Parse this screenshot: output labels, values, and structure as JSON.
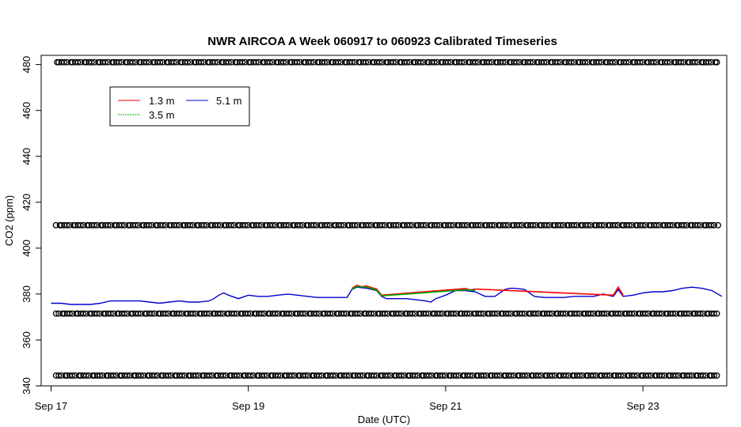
{
  "chart_data": {
    "type": "line",
    "title": "NWR AIRCOA A  Week 060917 to 060923  Calibrated Timeseries",
    "xlabel": "Date (UTC)",
    "ylabel": "CO2 (ppm)",
    "x_domain_days": [
      -0.1,
      6.85
    ],
    "ylim": [
      340,
      484
    ],
    "x_ticks": [
      {
        "day": 0,
        "label": "Sep 17"
      },
      {
        "day": 2,
        "label": "Sep 19"
      },
      {
        "day": 4,
        "label": "Sep 21"
      },
      {
        "day": 6,
        "label": "Sep 23"
      }
    ],
    "y_ticks": [
      340,
      360,
      380,
      400,
      420,
      440,
      460,
      480
    ],
    "legend": {
      "placement": "top-left",
      "entries": [
        {
          "name": "1.3 m",
          "color": "#ff0000"
        },
        {
          "name": "3.5 m",
          "color": "#00aa00"
        },
        {
          "name": "5.1 m",
          "color": "#0000cc"
        }
      ]
    },
    "calibration_levels": [
      481,
      410,
      371.5,
      344.5
    ],
    "calibration_time_range_days": [
      0.05,
      6.75
    ],
    "series": [
      {
        "name": "5.1 m",
        "color": "#0000cc",
        "x": [
          0,
          0.1,
          0.2,
          0.3,
          0.4,
          0.5,
          0.6,
          0.7,
          0.8,
          0.9,
          1.0,
          1.1,
          1.2,
          1.3,
          1.4,
          1.5,
          1.6,
          1.65,
          1.7,
          1.75,
          1.8,
          1.9,
          2.0,
          2.1,
          2.2,
          2.3,
          2.4,
          2.5,
          2.6,
          2.7,
          2.8,
          2.9,
          3.0,
          3.05,
          3.1,
          3.2,
          3.3,
          3.35,
          3.4,
          3.5,
          3.6,
          3.7,
          3.8,
          3.85,
          3.9,
          4.0,
          4.1,
          4.2,
          4.3,
          4.4,
          4.5,
          4.6,
          4.65,
          4.7,
          4.8,
          4.9,
          5.0,
          5.1,
          5.2,
          5.3,
          5.4,
          5.5,
          5.6,
          5.7,
          5.75,
          5.8,
          5.9,
          6.0,
          6.1,
          6.2,
          6.3,
          6.4,
          6.5,
          6.6,
          6.7,
          6.8
        ],
        "y": [
          376,
          376,
          375.5,
          375.5,
          375.5,
          376,
          377,
          377,
          377,
          377,
          376.5,
          376,
          376.5,
          377,
          376.5,
          376.5,
          377,
          378,
          379.5,
          380.5,
          379.5,
          378,
          379.5,
          379,
          379,
          379.5,
          380,
          379.5,
          379,
          378.5,
          378.5,
          378.5,
          378.5,
          382,
          383,
          382.5,
          381.5,
          379,
          378,
          378,
          378,
          377.5,
          377,
          376.5,
          378,
          379.5,
          381.5,
          381.5,
          381,
          379,
          379,
          382,
          382.5,
          382.5,
          382,
          379,
          378.5,
          378.5,
          378.5,
          379,
          379,
          379,
          380,
          379,
          382,
          379,
          379.5,
          380.5,
          381,
          381,
          381.5,
          382.5,
          383,
          382.5,
          381.5,
          379
        ]
      },
      {
        "name": "1.3 m",
        "color": "#ff0000",
        "x": [
          3.05,
          3.1,
          3.15,
          3.2,
          3.25,
          3.3,
          3.35,
          4.2,
          4.25,
          4.3,
          5.7,
          5.75,
          5.8
        ],
        "y": [
          382.5,
          383.8,
          383.2,
          383.5,
          382.8,
          382.2,
          379.5,
          382.4,
          381.8,
          382.2,
          379.5,
          383,
          379.5
        ]
      },
      {
        "name": "3.5 m",
        "color": "#00aa00",
        "x": [
          3.05,
          3.1,
          3.2,
          3.3,
          3.35,
          4.2,
          4.3
        ],
        "y": [
          382.2,
          383.3,
          383,
          381.8,
          379.2,
          381.9,
          381.5
        ]
      }
    ]
  }
}
